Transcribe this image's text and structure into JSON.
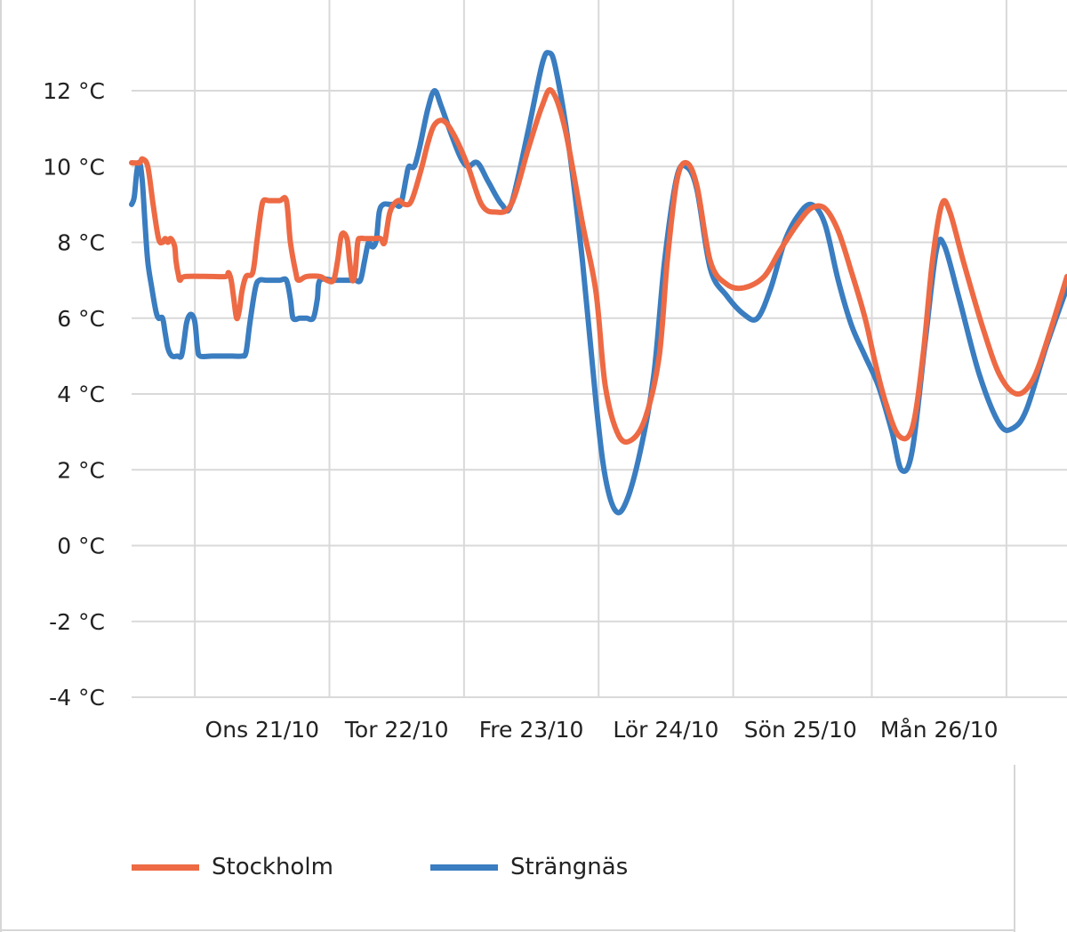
{
  "chart_data": {
    "type": "line",
    "title": "",
    "xlabel": "",
    "ylabel": "",
    "x_range": [
      0,
      6.95
    ],
    "ylim": [
      -4,
      13.5
    ],
    "y_ticks": [
      12,
      10,
      8,
      6,
      4,
      2,
      0,
      -2,
      -4
    ],
    "y_tick_labels": [
      "12 °C",
      "10 °C",
      "8 °C",
      "6 °C",
      "4 °C",
      "2 °C",
      "0 °C",
      "-2 °C",
      "-4 °C"
    ],
    "x_gridlines": [
      0.47,
      1.47,
      2.47,
      3.47,
      4.47,
      5.5,
      6.5
    ],
    "categories": [
      "Ons 21/10",
      "Tor 22/10",
      "Fre 23/10",
      "Lör 24/10",
      "Sön 25/10",
      "Mån 26/10"
    ],
    "category_positions": [
      0.97,
      1.97,
      2.97,
      3.97,
      4.97,
      6.0
    ],
    "grid": true,
    "legend_position": "bottom",
    "series": [
      {
        "name": "Stockholm",
        "color": "#ED6A44",
        "points": [
          [
            0.0,
            10.1
          ],
          [
            0.06,
            10.1
          ],
          [
            0.08,
            10.2
          ],
          [
            0.12,
            10.0
          ],
          [
            0.16,
            9.0
          ],
          [
            0.2,
            8.1
          ],
          [
            0.23,
            8.0
          ],
          [
            0.25,
            8.1
          ],
          [
            0.27,
            8.0
          ],
          [
            0.29,
            8.1
          ],
          [
            0.32,
            7.9
          ],
          [
            0.33,
            7.5
          ],
          [
            0.35,
            7.1
          ],
          [
            0.36,
            7.0
          ],
          [
            0.4,
            7.1
          ],
          [
            0.6,
            7.1
          ],
          [
            0.7,
            7.1
          ],
          [
            0.72,
            7.2
          ],
          [
            0.74,
            7.0
          ],
          [
            0.76,
            6.5
          ],
          [
            0.78,
            6.0
          ],
          [
            0.8,
            6.2
          ],
          [
            0.82,
            6.7
          ],
          [
            0.85,
            7.1
          ],
          [
            0.9,
            7.2
          ],
          [
            0.93,
            8.0
          ],
          [
            0.96,
            8.8
          ],
          [
            0.98,
            9.1
          ],
          [
            1.02,
            9.1
          ],
          [
            1.1,
            9.1
          ],
          [
            1.15,
            9.1
          ],
          [
            1.18,
            8.0
          ],
          [
            1.22,
            7.2
          ],
          [
            1.24,
            7.0
          ],
          [
            1.3,
            7.1
          ],
          [
            1.4,
            7.1
          ],
          [
            1.45,
            7.0
          ],
          [
            1.5,
            7.0
          ],
          [
            1.53,
            7.5
          ],
          [
            1.56,
            8.2
          ],
          [
            1.6,
            8.1
          ],
          [
            1.62,
            7.5
          ],
          [
            1.64,
            7.0
          ],
          [
            1.66,
            7.2
          ],
          [
            1.68,
            8.0
          ],
          [
            1.7,
            8.1
          ],
          [
            1.73,
            8.1
          ],
          [
            1.8,
            8.1
          ],
          [
            1.85,
            8.1
          ],
          [
            1.88,
            8.0
          ],
          [
            1.92,
            8.8
          ],
          [
            1.98,
            9.1
          ],
          [
            2.03,
            9.0
          ],
          [
            2.08,
            9.1
          ],
          [
            2.15,
            9.9
          ],
          [
            2.2,
            10.6
          ],
          [
            2.25,
            11.1
          ],
          [
            2.32,
            11.2
          ],
          [
            2.4,
            10.8
          ],
          [
            2.5,
            10.0
          ],
          [
            2.6,
            9.0
          ],
          [
            2.7,
            8.8
          ],
          [
            2.82,
            9.0
          ],
          [
            2.95,
            10.5
          ],
          [
            3.05,
            11.6
          ],
          [
            3.12,
            12.0
          ],
          [
            3.22,
            11.0
          ],
          [
            3.35,
            8.5
          ],
          [
            3.45,
            6.7
          ],
          [
            3.52,
            4.2
          ],
          [
            3.62,
            2.9
          ],
          [
            3.72,
            2.8
          ],
          [
            3.82,
            3.4
          ],
          [
            3.92,
            5.0
          ],
          [
            3.98,
            7.5
          ],
          [
            4.05,
            9.6
          ],
          [
            4.12,
            10.1
          ],
          [
            4.2,
            9.5
          ],
          [
            4.3,
            7.5
          ],
          [
            4.42,
            6.9
          ],
          [
            4.55,
            6.8
          ],
          [
            4.7,
            7.1
          ],
          [
            4.82,
            7.8
          ],
          [
            4.95,
            8.5
          ],
          [
            5.05,
            8.9
          ],
          [
            5.15,
            8.9
          ],
          [
            5.25,
            8.3
          ],
          [
            5.35,
            7.2
          ],
          [
            5.45,
            6.0
          ],
          [
            5.52,
            4.9
          ],
          [
            5.6,
            3.8
          ],
          [
            5.7,
            2.9
          ],
          [
            5.8,
            3.1
          ],
          [
            5.88,
            5.0
          ],
          [
            5.95,
            7.5
          ],
          [
            6.02,
            9.0
          ],
          [
            6.08,
            8.8
          ],
          [
            6.18,
            7.5
          ],
          [
            6.32,
            5.8
          ],
          [
            6.45,
            4.5
          ],
          [
            6.58,
            4.0
          ],
          [
            6.7,
            4.4
          ],
          [
            6.82,
            5.6
          ],
          [
            6.95,
            7.1
          ]
        ]
      },
      {
        "name": "Strängnäs",
        "color": "#3A7DC0",
        "points": [
          [
            0.0,
            9.0
          ],
          [
            0.02,
            9.2
          ],
          [
            0.04,
            9.9
          ],
          [
            0.06,
            10.1
          ],
          [
            0.08,
            9.6
          ],
          [
            0.1,
            8.5
          ],
          [
            0.12,
            7.5
          ],
          [
            0.15,
            6.8
          ],
          [
            0.18,
            6.2
          ],
          [
            0.2,
            6.0
          ],
          [
            0.23,
            6.0
          ],
          [
            0.25,
            5.6
          ],
          [
            0.27,
            5.2
          ],
          [
            0.3,
            5.0
          ],
          [
            0.34,
            5.0
          ],
          [
            0.37,
            5.0
          ],
          [
            0.39,
            5.4
          ],
          [
            0.41,
            5.9
          ],
          [
            0.44,
            6.1
          ],
          [
            0.47,
            5.9
          ],
          [
            0.49,
            5.2
          ],
          [
            0.51,
            5.0
          ],
          [
            0.6,
            5.0
          ],
          [
            0.75,
            5.0
          ],
          [
            0.82,
            5.0
          ],
          [
            0.85,
            5.1
          ],
          [
            0.88,
            5.9
          ],
          [
            0.92,
            6.8
          ],
          [
            0.95,
            7.0
          ],
          [
            1.0,
            7.0
          ],
          [
            1.1,
            7.0
          ],
          [
            1.15,
            7.0
          ],
          [
            1.18,
            6.5
          ],
          [
            1.2,
            6.0
          ],
          [
            1.25,
            6.0
          ],
          [
            1.3,
            6.0
          ],
          [
            1.35,
            6.0
          ],
          [
            1.38,
            6.5
          ],
          [
            1.4,
            7.0
          ],
          [
            1.5,
            7.0
          ],
          [
            1.6,
            7.0
          ],
          [
            1.66,
            7.0
          ],
          [
            1.7,
            7.0
          ],
          [
            1.73,
            7.5
          ],
          [
            1.76,
            8.0
          ],
          [
            1.78,
            7.9
          ],
          [
            1.8,
            7.9
          ],
          [
            1.82,
            8.1
          ],
          [
            1.84,
            8.8
          ],
          [
            1.87,
            9.0
          ],
          [
            1.92,
            9.0
          ],
          [
            1.96,
            9.0
          ],
          [
            2.0,
            9.0
          ],
          [
            2.04,
            9.7
          ],
          [
            2.06,
            10.0
          ],
          [
            2.1,
            10.0
          ],
          [
            2.14,
            10.5
          ],
          [
            2.2,
            11.5
          ],
          [
            2.25,
            12.0
          ],
          [
            2.3,
            11.6
          ],
          [
            2.38,
            10.8
          ],
          [
            2.45,
            10.2
          ],
          [
            2.5,
            10.0
          ],
          [
            2.57,
            10.1
          ],
          [
            2.65,
            9.6
          ],
          [
            2.75,
            9.0
          ],
          [
            2.82,
            9.0
          ],
          [
            2.95,
            11.0
          ],
          [
            3.05,
            12.7
          ],
          [
            3.1,
            13.0
          ],
          [
            3.15,
            12.6
          ],
          [
            3.25,
            10.5
          ],
          [
            3.35,
            7.5
          ],
          [
            3.45,
            3.8
          ],
          [
            3.52,
            1.8
          ],
          [
            3.6,
            0.9
          ],
          [
            3.68,
            1.2
          ],
          [
            3.78,
            2.5
          ],
          [
            3.88,
            4.5
          ],
          [
            3.96,
            7.5
          ],
          [
            4.05,
            9.7
          ],
          [
            4.12,
            10.0
          ],
          [
            4.2,
            9.4
          ],
          [
            4.3,
            7.3
          ],
          [
            4.42,
            6.6
          ],
          [
            4.55,
            6.1
          ],
          [
            4.65,
            6.0
          ],
          [
            4.75,
            6.8
          ],
          [
            4.85,
            8.0
          ],
          [
            4.95,
            8.7
          ],
          [
            5.05,
            9.0
          ],
          [
            5.15,
            8.5
          ],
          [
            5.25,
            7.0
          ],
          [
            5.35,
            5.8
          ],
          [
            5.45,
            5.0
          ],
          [
            5.55,
            4.2
          ],
          [
            5.65,
            3.0
          ],
          [
            5.72,
            2.0
          ],
          [
            5.8,
            2.5
          ],
          [
            5.9,
            5.5
          ],
          [
            5.98,
            7.8
          ],
          [
            6.04,
            7.9
          ],
          [
            6.15,
            6.5
          ],
          [
            6.3,
            4.5
          ],
          [
            6.45,
            3.2
          ],
          [
            6.55,
            3.1
          ],
          [
            6.65,
            3.6
          ],
          [
            6.8,
            5.3
          ],
          [
            6.95,
            6.8
          ]
        ]
      }
    ]
  }
}
